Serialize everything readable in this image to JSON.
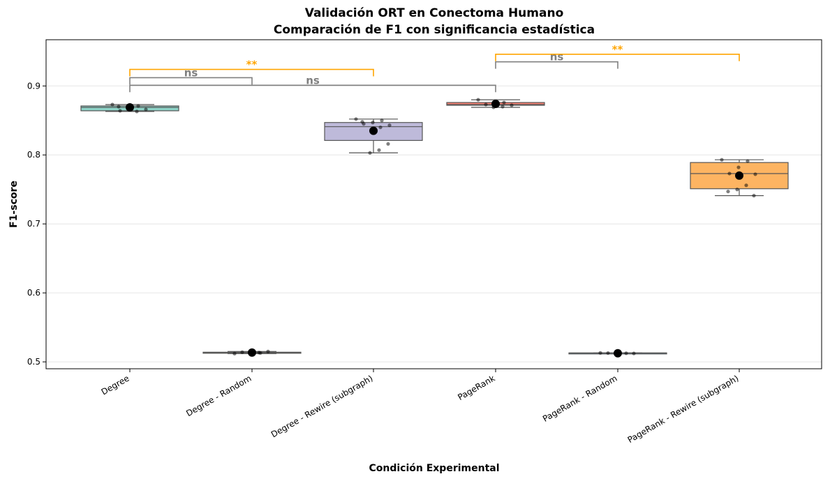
{
  "chart_data": {
    "type": "box",
    "title": "Validación ORT en Conectoma Humano",
    "subtitle": "Comparación de F1 con significancia estadística",
    "xlabel": "Condición Experimental",
    "ylabel": "F1-score",
    "ylim": [
      0.49,
      0.967
    ],
    "yticks": [
      "0.5",
      "0.6",
      "0.7",
      "0.8",
      "0.9"
    ],
    "grid": "y",
    "categories": [
      "Degree",
      "Degree - Random",
      "Degree - Rewire (subgraph)",
      "PageRank",
      "PageRank - Random",
      "PageRank - Rewire (subgraph)"
    ],
    "colors": [
      "#8dd3c7",
      "#ffffb3",
      "#bebada",
      "#fb8072",
      "#80b1d3",
      "#fdb462"
    ],
    "boxes": [
      {
        "min": 0.863,
        "q1": 0.864,
        "median": 0.869,
        "q3": 0.871,
        "max": 0.873,
        "mean": 0.869,
        "points": [
          0.873,
          0.871,
          0.869,
          0.864,
          0.866,
          0.863,
          0.868,
          0.87
        ]
      },
      {
        "min": 0.512,
        "q1": 0.513,
        "median": 0.5135,
        "q3": 0.514,
        "max": 0.515,
        "mean": 0.5135,
        "points": [
          0.512,
          0.513,
          0.5135,
          0.514,
          0.515,
          0.5135,
          0.513
        ]
      },
      {
        "min": 0.803,
        "q1": 0.821,
        "median": 0.841,
        "q3": 0.847,
        "max": 0.852,
        "mean": 0.835,
        "points": [
          0.852,
          0.85,
          0.847,
          0.845,
          0.843,
          0.84,
          0.836,
          0.848,
          0.816,
          0.807,
          0.803
        ]
      },
      {
        "min": 0.869,
        "q1": 0.872,
        "median": 0.873,
        "q3": 0.876,
        "max": 0.88,
        "mean": 0.874,
        "points": [
          0.88,
          0.876,
          0.874,
          0.873,
          0.872,
          0.87,
          0.869
        ]
      },
      {
        "min": 0.512,
        "q1": 0.5125,
        "median": 0.5128,
        "q3": 0.513,
        "max": 0.513,
        "mean": 0.5125,
        "points": [
          0.513,
          0.5125,
          0.512,
          0.5128,
          0.5122
        ]
      },
      {
        "min": 0.741,
        "q1": 0.751,
        "median": 0.773,
        "q3": 0.789,
        "max": 0.793,
        "mean": 0.77,
        "points": [
          0.793,
          0.791,
          0.782,
          0.773,
          0.772,
          0.756,
          0.75,
          0.747,
          0.741
        ]
      }
    ],
    "significance": [
      {
        "from": 0,
        "to": 1,
        "label": "ns",
        "color": "#808080",
        "y": 0.912
      },
      {
        "from": 0,
        "to": 2,
        "label": "**",
        "color": "#ffa500",
        "y": 0.924
      },
      {
        "from": 0,
        "to": 3,
        "label": "ns",
        "color": "#808080",
        "y": 0.901
      },
      {
        "from": 3,
        "to": 4,
        "label": "ns",
        "color": "#808080",
        "y": 0.935
      },
      {
        "from": 3,
        "to": 5,
        "label": "**",
        "color": "#ffa500",
        "y": 0.946
      }
    ]
  }
}
